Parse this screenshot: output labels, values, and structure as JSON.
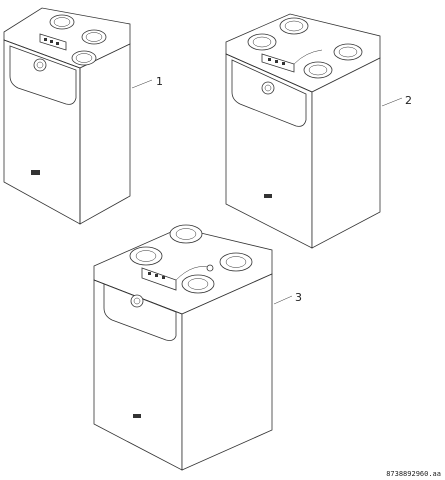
{
  "diagram": {
    "units": [
      {
        "id": "1",
        "label": "1"
      },
      {
        "id": "2",
        "label": "2"
      },
      {
        "id": "3",
        "label": "3"
      }
    ],
    "reference_code": "8738892960.aa"
  },
  "colors": {
    "line": "#333333",
    "background": "#ffffff"
  }
}
